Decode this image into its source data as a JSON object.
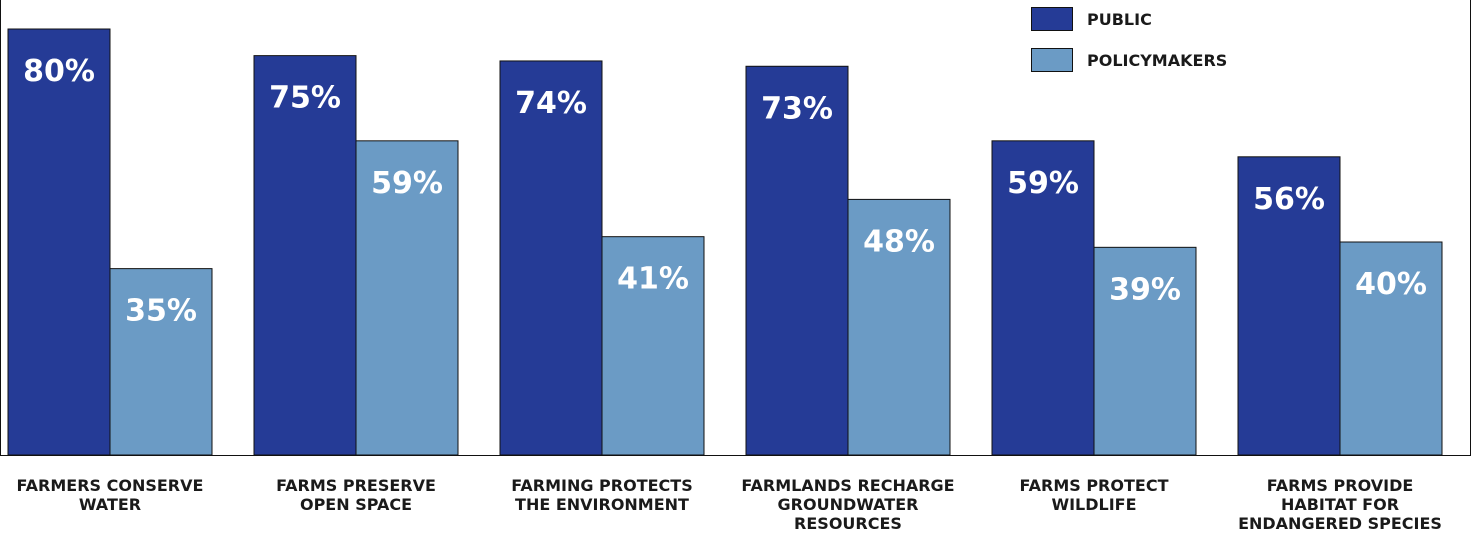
{
  "chart_data": {
    "type": "bar",
    "categories": [
      "FARMERS CONSERVE WATER",
      "FARMS PRESERVE OPEN SPACE",
      "FARMING PROTECTS THE ENVIRONMENT",
      "FARMLANDS RECHARGE GROUNDWATER RESOURCES",
      "FARMS PROTECT WILDLIFE",
      "FARMS PROVIDE HABITAT FOR ENDANGERED SPECIES"
    ],
    "category_lines": [
      [
        "FARMERS CONSERVE",
        "WATER"
      ],
      [
        "FARMS PRESERVE",
        "OPEN SPACE"
      ],
      [
        "FARMING PROTECTS",
        "THE ENVIRONMENT"
      ],
      [
        "FARMLANDS RECHARGE",
        "GROUNDWATER",
        "RESOURCES"
      ],
      [
        "FARMS PROTECT",
        "WILDLIFE"
      ],
      [
        "FARMS PROVIDE",
        "HABITAT FOR",
        "ENDANGERED SPECIES"
      ]
    ],
    "series": [
      {
        "name": "PUBLIC",
        "color": "#253b96",
        "values": [
          80,
          75,
          74,
          73,
          59,
          56
        ],
        "labels": [
          "80%",
          "75%",
          "74%",
          "73%",
          "59%",
          "56%"
        ]
      },
      {
        "name": "POLICYMAKERS",
        "color": "#6b9bc5",
        "values": [
          35,
          59,
          41,
          48,
          39,
          40
        ],
        "labels": [
          "35%",
          "59%",
          "41%",
          "48%",
          "39%",
          "40%"
        ]
      }
    ],
    "ylim": [
      0,
      80
    ],
    "legend_position": "top-right",
    "grid": false
  }
}
